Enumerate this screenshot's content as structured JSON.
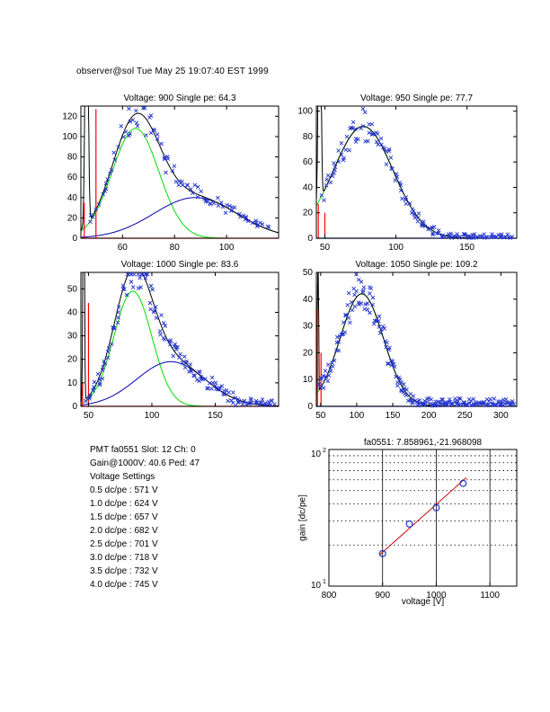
{
  "header": {
    "timestamp": "observer@sol  Tue May 25 19:07:40 EST 1999"
  },
  "info": {
    "lines": [
      "PMT fa0551 Slot: 12 Ch: 0",
      "Gain@1000V: 40.6 Ped: 47",
      "Voltage Settings",
      "0.5 dc/pe : 571 V",
      "1.0 dc/pe : 624 V",
      "1.5 dc/pe : 657 V",
      "2.0 dc/pe : 682 V",
      "2.5 dc/pe : 701 V",
      "3.0 dc/pe : 718 V",
      "3.5 dc/pe : 732 V",
      "4.0 dc/pe : 745 V"
    ]
  },
  "colors": {
    "marker_blue": "#2233cc",
    "curve_navy": "#0000aa",
    "curve_green": "#00dd00",
    "curve_black": "#000000",
    "pedestal_red": "#ff0000",
    "fit_red": "#cc0000"
  },
  "chart_data": [
    {
      "type": "scatter",
      "panel": "voltage-900",
      "title": "Voltage: 900 Single pe: 64.3",
      "voltage": 900,
      "single_pe": 64.3,
      "xlim": [
        44,
        120
      ],
      "ylim": [
        0,
        130
      ],
      "xticks": [
        60,
        80,
        100
      ],
      "yticks": [
        0,
        20,
        40,
        60,
        80,
        100,
        120
      ],
      "curves": [
        {
          "name": "pedestal-peak",
          "color": "#000000",
          "amp": 400,
          "mean": 46.2,
          "sigma": 0.5,
          "draw": false,
          "in_sum": true
        },
        {
          "name": "single-pe-gaussian",
          "color": "#00dd00",
          "amp": 108,
          "mean": 65,
          "sigma": 9,
          "draw": true,
          "in_sum": true
        },
        {
          "name": "multi-pe-gaussian",
          "color": "#0000aa",
          "amp": 40,
          "mean": 88,
          "sigma": 16,
          "draw": true,
          "in_sum": true
        },
        {
          "name": "total-fit",
          "color": "#000000",
          "type": "sum",
          "draw": true
        }
      ],
      "red_vlines": [
        {
          "x": 45.3,
          "h": 35
        },
        {
          "x": 49.8,
          "h": 127
        }
      ],
      "baseline_color": "#ff0000",
      "scatter": {
        "count": 92,
        "seed": 11,
        "noise_rel": 0.13,
        "noise_abs": 3.5,
        "color": "#2233cc"
      }
    },
    {
      "type": "scatter",
      "panel": "voltage-950",
      "title": "Voltage: 950 Single pe: 77.7",
      "voltage": 950,
      "single_pe": 77.7,
      "xlim": [
        44,
        185
      ],
      "ylim": [
        0,
        104
      ],
      "xticks": [
        50,
        100,
        150
      ],
      "yticks": [
        0,
        20,
        40,
        60,
        80,
        100
      ],
      "curves": [
        {
          "name": "pedestal-peak",
          "color": "#000000",
          "amp": 300,
          "mean": 46.3,
          "sigma": 0.8,
          "draw": false,
          "in_sum": true
        },
        {
          "name": "single-pe-gaussian",
          "color": "#00dd00",
          "amp": 88,
          "mean": 77,
          "sigma": 21,
          "draw": true,
          "in_sum": true
        },
        {
          "name": "total-fit",
          "color": "#000000",
          "type": "sum",
          "draw": true
        }
      ],
      "red_vlines": [
        {
          "x": 45.4,
          "h": 27
        },
        {
          "x": 50,
          "h": 20
        }
      ],
      "baseline_color": "#0000cc",
      "scatter": {
        "count": 140,
        "seed": 22,
        "noise_rel": 0.13,
        "noise_abs": 3.2,
        "color": "#2233cc"
      }
    },
    {
      "type": "scatter",
      "panel": "voltage-1000",
      "title": "Voltage: 1000 Single pe: 83.6",
      "voltage": 1000,
      "single_pe": 83.6,
      "xlim": [
        44,
        200
      ],
      "ylim": [
        0,
        57
      ],
      "xticks": [
        50,
        100,
        150
      ],
      "yticks": [
        0,
        10,
        20,
        30,
        40,
        50
      ],
      "curves": [
        {
          "name": "pedestal-peak",
          "color": "#000000",
          "amp": 200,
          "mean": 46.2,
          "sigma": 0.5,
          "draw": false,
          "in_sum": true
        },
        {
          "name": "single-pe-gaussian",
          "color": "#00dd00",
          "amp": 49,
          "mean": 85,
          "sigma": 15,
          "draw": true,
          "in_sum": true
        },
        {
          "name": "multi-pe-gaussian",
          "color": "#0000aa",
          "amp": 19,
          "mean": 115,
          "sigma": 27,
          "draw": true,
          "in_sum": true
        },
        {
          "name": "total-fit",
          "color": "#000000",
          "type": "sum",
          "draw": true
        }
      ],
      "red_vlines": [
        {
          "x": 45.3,
          "h": 10
        },
        {
          "x": 50,
          "h": 44
        }
      ],
      "baseline_color": "#ff0000",
      "scatter": {
        "count": 150,
        "seed": 33,
        "noise_rel": 0.14,
        "noise_abs": 3,
        "color": "#2233cc"
      }
    },
    {
      "type": "scatter",
      "panel": "voltage-1050",
      "title": "Voltage: 1050 Single pe: 109.2",
      "voltage": 1050,
      "single_pe": 109.2,
      "xlim": [
        44,
        322
      ],
      "ylim": [
        0,
        50
      ],
      "xticks": [
        50,
        100,
        150,
        200,
        250,
        300
      ],
      "yticks": [
        0,
        10,
        20,
        30,
        40,
        50
      ],
      "curves": [
        {
          "name": "pedestal-peak",
          "color": "#000000",
          "amp": 200,
          "mean": 46.3,
          "sigma": 0.5,
          "draw": false,
          "in_sum": true
        },
        {
          "name": "single-pe-gaussian",
          "color": "#00dd00",
          "amp": 42,
          "mean": 107,
          "sigma": 30,
          "draw": true,
          "in_sum": true
        },
        {
          "name": "total-fit",
          "color": "#000000",
          "type": "sum",
          "draw": true
        }
      ],
      "red_vlines": [
        {
          "x": 45.5,
          "h": 36
        },
        {
          "x": 50.5,
          "h": 20
        }
      ],
      "baseline_color": "#0000cc",
      "scatter": {
        "count": 210,
        "seed": 44,
        "noise_rel": 0.15,
        "noise_abs": 3,
        "color": "#2233cc"
      }
    },
    {
      "type": "line",
      "panel": "gain-curve",
      "title": "fa0551: 7.858961,-21.968098",
      "xlabel": "voltage [V]",
      "ylabel": "gain [dc/pe]",
      "xlim": [
        800,
        1150
      ],
      "ylim_log": [
        10,
        100
      ],
      "xticks": [
        800,
        900,
        1000,
        1100
      ],
      "ytick_labels": [
        {
          "base": "10",
          "exp": "1"
        },
        {
          "base": "10",
          "exp": "2"
        }
      ],
      "x_gridlines": [
        900,
        1000,
        1100
      ],
      "y_gridlines": [
        20,
        30,
        40,
        50,
        60,
        70,
        80,
        90
      ],
      "points": {
        "x": [
          900,
          950,
          1000,
          1050
        ],
        "gain": [
          17.3,
          28.5,
          37.5,
          56.5
        ],
        "color": "#2233cc"
      },
      "fit": {
        "slope": 7.858961,
        "intercept": -21.968098,
        "x_range": [
          895,
          1056
        ],
        "color": "#cc0000"
      }
    }
  ]
}
